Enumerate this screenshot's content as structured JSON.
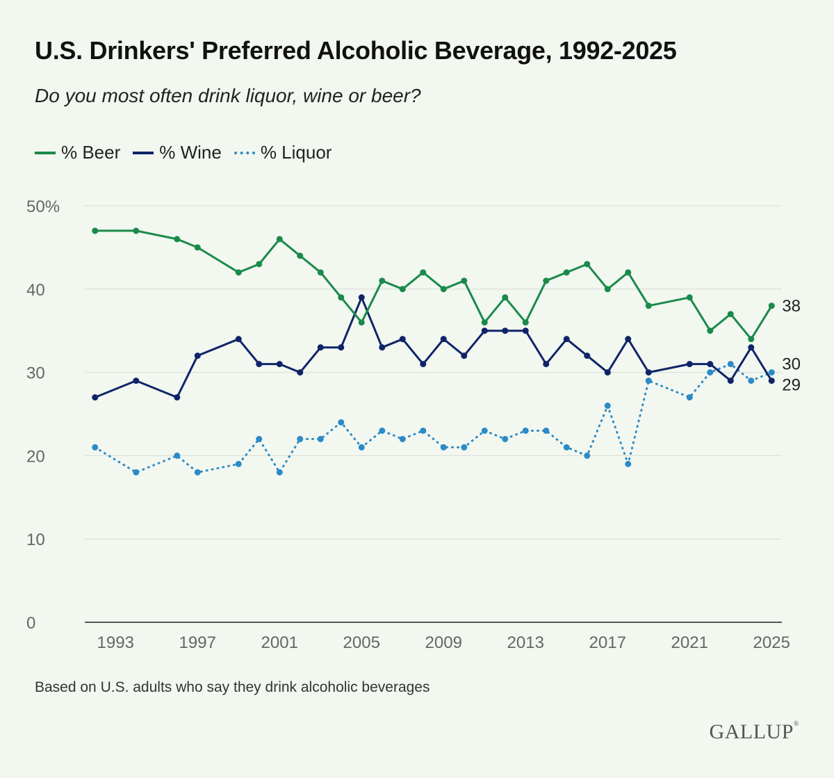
{
  "header": {
    "title": "U.S. Drinkers' Preferred Alcoholic Beverage, 1992-2025",
    "subtitle": "Do you most often drink liquor, wine or beer?"
  },
  "legend": [
    {
      "label": "% Beer",
      "color": "#1a8a4a",
      "style": "solid"
    },
    {
      "label": "% Wine",
      "color": "#0f2468",
      "style": "solid"
    },
    {
      "label": "% Liquor",
      "color": "#2b8bc6",
      "style": "dotted"
    }
  ],
  "footer": {
    "note": "Based on U.S. adults who say they drink alcoholic beverages",
    "brand": "GALLUP",
    "brand_mark": "®"
  },
  "chart_data": {
    "type": "line",
    "title": "U.S. Drinkers' Preferred Alcoholic Beverage, 1992-2025",
    "subtitle": "Do you most often drink liquor, wine or beer?",
    "xlabel": "",
    "ylabel": "",
    "xlim": [
      1991.5,
      2025.5
    ],
    "ylim": [
      0,
      50
    ],
    "x_ticks": [
      1993,
      1997,
      2001,
      2005,
      2009,
      2013,
      2017,
      2021,
      2025
    ],
    "y_ticks": [
      {
        "value": 0,
        "label": "0"
      },
      {
        "value": 10,
        "label": "10"
      },
      {
        "value": 20,
        "label": "20"
      },
      {
        "value": 30,
        "label": "30"
      },
      {
        "value": 40,
        "label": "40"
      },
      {
        "value": 50,
        "label": "50%"
      }
    ],
    "grid": true,
    "series": [
      {
        "name": "% Beer",
        "color": "#1a8a4a",
        "style": "solid",
        "end_label": "38",
        "points": [
          [
            1992,
            47
          ],
          [
            1994,
            47
          ],
          [
            1996,
            46
          ],
          [
            1997,
            45
          ],
          [
            1999,
            42
          ],
          [
            2000,
            43
          ],
          [
            2001,
            46
          ],
          [
            2002,
            44
          ],
          [
            2003,
            42
          ],
          [
            2004,
            39
          ],
          [
            2005,
            36
          ],
          [
            2006,
            41
          ],
          [
            2007,
            40
          ],
          [
            2008,
            42
          ],
          [
            2009,
            40
          ],
          [
            2010,
            41
          ],
          [
            2011,
            36
          ],
          [
            2012,
            39
          ],
          [
            2013,
            36
          ],
          [
            2014,
            41
          ],
          [
            2015,
            42
          ],
          [
            2016,
            43
          ],
          [
            2017,
            40
          ],
          [
            2018,
            42
          ],
          [
            2019,
            38
          ],
          [
            2021,
            39
          ],
          [
            2022,
            35
          ],
          [
            2023,
            37
          ],
          [
            2024,
            34
          ],
          [
            2025,
            38
          ]
        ]
      },
      {
        "name": "% Wine",
        "color": "#0f2468",
        "style": "solid",
        "end_label": "29",
        "points": [
          [
            1992,
            27
          ],
          [
            1994,
            29
          ],
          [
            1996,
            27
          ],
          [
            1997,
            32
          ],
          [
            1999,
            34
          ],
          [
            2000,
            31
          ],
          [
            2001,
            31
          ],
          [
            2002,
            30
          ],
          [
            2003,
            33
          ],
          [
            2004,
            33
          ],
          [
            2005,
            39
          ],
          [
            2006,
            33
          ],
          [
            2007,
            34
          ],
          [
            2008,
            31
          ],
          [
            2009,
            34
          ],
          [
            2010,
            32
          ],
          [
            2011,
            35
          ],
          [
            2012,
            35
          ],
          [
            2013,
            35
          ],
          [
            2014,
            31
          ],
          [
            2015,
            34
          ],
          [
            2016,
            32
          ],
          [
            2017,
            30
          ],
          [
            2018,
            34
          ],
          [
            2019,
            30
          ],
          [
            2021,
            31
          ],
          [
            2022,
            31
          ],
          [
            2023,
            29
          ],
          [
            2024,
            33
          ],
          [
            2025,
            29
          ]
        ]
      },
      {
        "name": "% Liquor",
        "color": "#2b8bc6",
        "style": "dotted",
        "end_label": "30",
        "points": [
          [
            1992,
            21
          ],
          [
            1994,
            18
          ],
          [
            1996,
            20
          ],
          [
            1997,
            18
          ],
          [
            1999,
            19
          ],
          [
            2000,
            22
          ],
          [
            2001,
            18
          ],
          [
            2002,
            22
          ],
          [
            2003,
            22
          ],
          [
            2004,
            24
          ],
          [
            2005,
            21
          ],
          [
            2006,
            23
          ],
          [
            2007,
            22
          ],
          [
            2008,
            23
          ],
          [
            2009,
            21
          ],
          [
            2010,
            21
          ],
          [
            2011,
            23
          ],
          [
            2012,
            22
          ],
          [
            2013,
            23
          ],
          [
            2014,
            23
          ],
          [
            2015,
            21
          ],
          [
            2016,
            20
          ],
          [
            2017,
            26
          ],
          [
            2018,
            19
          ],
          [
            2019,
            29
          ],
          [
            2021,
            27
          ],
          [
            2022,
            30
          ],
          [
            2023,
            31
          ],
          [
            2024,
            29
          ],
          [
            2025,
            30
          ]
        ]
      }
    ]
  }
}
